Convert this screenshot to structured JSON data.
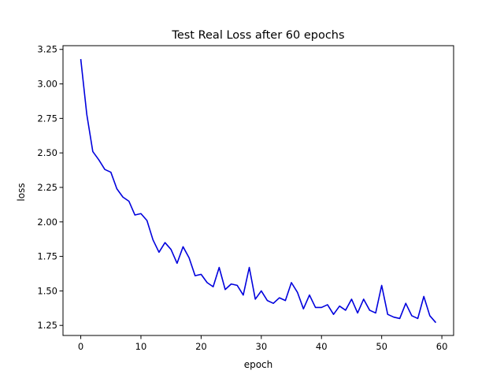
{
  "chart_data": {
    "type": "line",
    "title": "Test Real Loss after 60 epochs",
    "xlabel": "epoch",
    "ylabel": "loss",
    "xlim": [
      -2.95,
      61.95
    ],
    "ylim": [
      1.177,
      3.277
    ],
    "xticks": [
      0,
      10,
      20,
      30,
      40,
      50,
      60
    ],
    "yticks": [
      1.25,
      1.5,
      1.75,
      2.0,
      2.25,
      2.5,
      2.75,
      3.0,
      3.25
    ],
    "ytick_labels": [
      "1.25",
      "1.50",
      "1.75",
      "2.00",
      "2.25",
      "2.50",
      "2.75",
      "3.00",
      "3.25"
    ],
    "grid": false,
    "series": [
      {
        "color": "#0000dd",
        "x": [
          0,
          1,
          2,
          3,
          4,
          5,
          6,
          7,
          8,
          9,
          10,
          11,
          12,
          13,
          14,
          15,
          16,
          17,
          18,
          19,
          20,
          21,
          22,
          23,
          24,
          25,
          26,
          27,
          28,
          29,
          30,
          31,
          32,
          33,
          34,
          35,
          36,
          37,
          38,
          39,
          40,
          41,
          42,
          43,
          44,
          45,
          46,
          47,
          48,
          49,
          50,
          51,
          52,
          53,
          54,
          55,
          56,
          57,
          58,
          59
        ],
        "y": [
          3.18,
          2.78,
          2.51,
          2.45,
          2.38,
          2.36,
          2.24,
          2.18,
          2.15,
          2.05,
          2.06,
          2.01,
          1.87,
          1.78,
          1.85,
          1.8,
          1.7,
          1.82,
          1.74,
          1.61,
          1.62,
          1.56,
          1.53,
          1.67,
          1.51,
          1.55,
          1.54,
          1.47,
          1.67,
          1.44,
          1.5,
          1.43,
          1.41,
          1.45,
          1.43,
          1.56,
          1.49,
          1.37,
          1.47,
          1.38,
          1.38,
          1.4,
          1.33,
          1.39,
          1.36,
          1.44,
          1.34,
          1.44,
          1.36,
          1.34,
          1.54,
          1.33,
          1.31,
          1.3,
          1.41,
          1.32,
          1.3,
          1.46,
          1.32,
          1.27
        ]
      }
    ]
  }
}
